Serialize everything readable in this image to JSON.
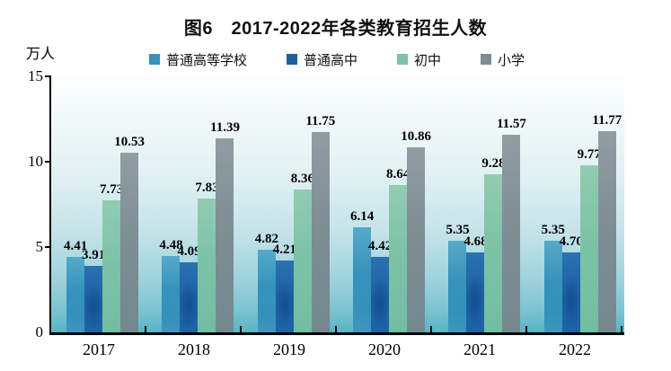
{
  "figure": {
    "title": "图6　2017-2022年各类教育招生人数"
  },
  "chart_data": {
    "type": "bar",
    "title": "图6　2017-2022年各类教育招生人数",
    "ylabel": "万人",
    "xlabel": "",
    "categories": [
      "2017",
      "2018",
      "2019",
      "2020",
      "2021",
      "2022"
    ],
    "series": [
      {
        "name": "普通高等学校",
        "color": "#3692bc",
        "values": [
          4.41,
          4.48,
          4.82,
          6.14,
          5.35,
          5.35
        ]
      },
      {
        "name": "普通高中",
        "color": "#1d5fa3",
        "values": [
          3.91,
          4.09,
          4.21,
          4.42,
          4.68,
          4.7
        ]
      },
      {
        "name": "初中",
        "color": "#7dc3a6",
        "values": [
          7.73,
          7.83,
          8.36,
          8.64,
          9.28,
          9.77
        ]
      },
      {
        "name": "小学",
        "color": "#7d8d93",
        "values": [
          10.53,
          11.39,
          11.75,
          10.86,
          11.57,
          11.77
        ]
      }
    ],
    "ylim": [
      0,
      15
    ],
    "yticks": [
      0,
      5,
      10,
      15
    ],
    "value_label_decimals": 2,
    "legend_position": "top",
    "grid": false,
    "axis_color": "#000000",
    "title_color": "#111111",
    "plot_background": "white-to-cyan vertical gradient"
  }
}
